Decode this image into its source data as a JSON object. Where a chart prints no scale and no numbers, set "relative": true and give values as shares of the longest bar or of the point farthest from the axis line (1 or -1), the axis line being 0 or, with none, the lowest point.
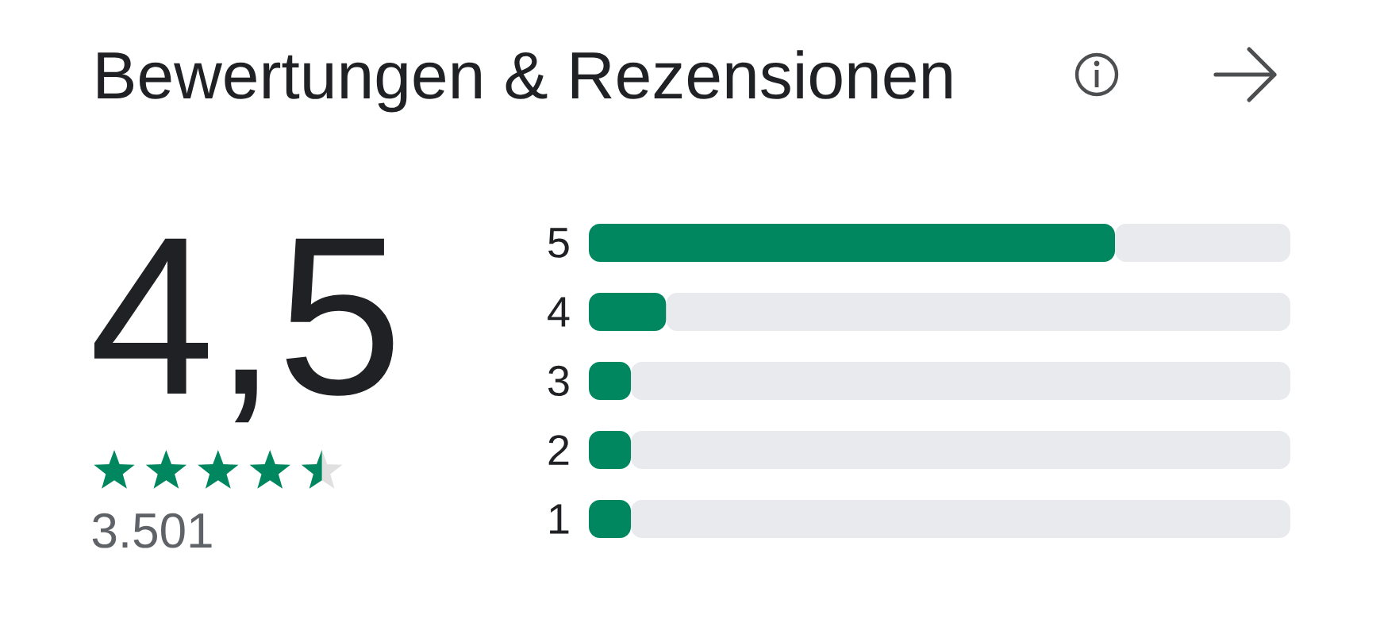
{
  "chart_data": {
    "type": "bar",
    "orientation": "horizontal",
    "relative": true,
    "stacked": true,
    "title": "Bewertungen & Rezensionen",
    "annotations": [
      "4,5",
      "3.501"
    ],
    "categories": [
      "5",
      "4",
      "3",
      "2",
      "1"
    ],
    "series": [
      {
        "color": "#01875f",
        "values": [
          0.75,
          0.11,
          0.06,
          0.06,
          0.06
        ]
      },
      {
        "color": "#e8eaed",
        "values": [
          0.25,
          0.89,
          0.94,
          0.94,
          0.94
        ]
      }
    ]
  }
}
